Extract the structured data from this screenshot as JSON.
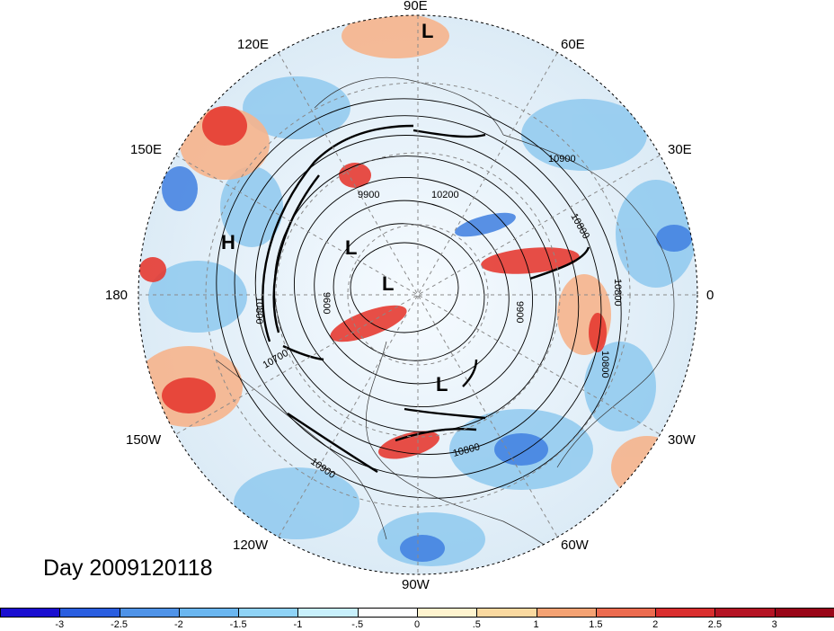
{
  "map": {
    "projection": "north-polar-stereographic",
    "title": "Day 2009120118",
    "longitude_labels": [
      "90E",
      "60E",
      "30E",
      "0",
      "30W",
      "60W",
      "90W",
      "120W",
      "150W",
      "180",
      "150E",
      "120E"
    ],
    "pressure_centers": [
      "L",
      "L",
      "L",
      "L",
      "H"
    ],
    "contour_labels": [
      "9900",
      "10200",
      "9600",
      "9900",
      "10800",
      "10800",
      "10800",
      "10700",
      "10800",
      "10900",
      "10800",
      "10900"
    ],
    "fill_colors": {
      "strong_negative": "#1a0ed0",
      "negative": "#4f93e8",
      "weak_negative": "#a8e4f8",
      "neutral": "#fffde8",
      "weak_positive": "#f7c48f",
      "positive": "#eb5a3c",
      "strong_positive": "#a00a1e"
    }
  },
  "colorbar": {
    "tick_labels": [
      "-3",
      "-2.5",
      "-2",
      "-1.5",
      "-1",
      "-.5",
      "0",
      ".5",
      "1",
      "1.5",
      "2",
      "2.5",
      "3"
    ],
    "colors": [
      "#1a0ed0",
      "#2a5ee0",
      "#4f93e8",
      "#6ab6f0",
      "#8fd3f6",
      "#c8f0fc",
      "#ffffff",
      "#fff4cf",
      "#fad9a0",
      "#f4a273",
      "#ec6b4f",
      "#d92e2e",
      "#b51424",
      "#990618"
    ]
  }
}
